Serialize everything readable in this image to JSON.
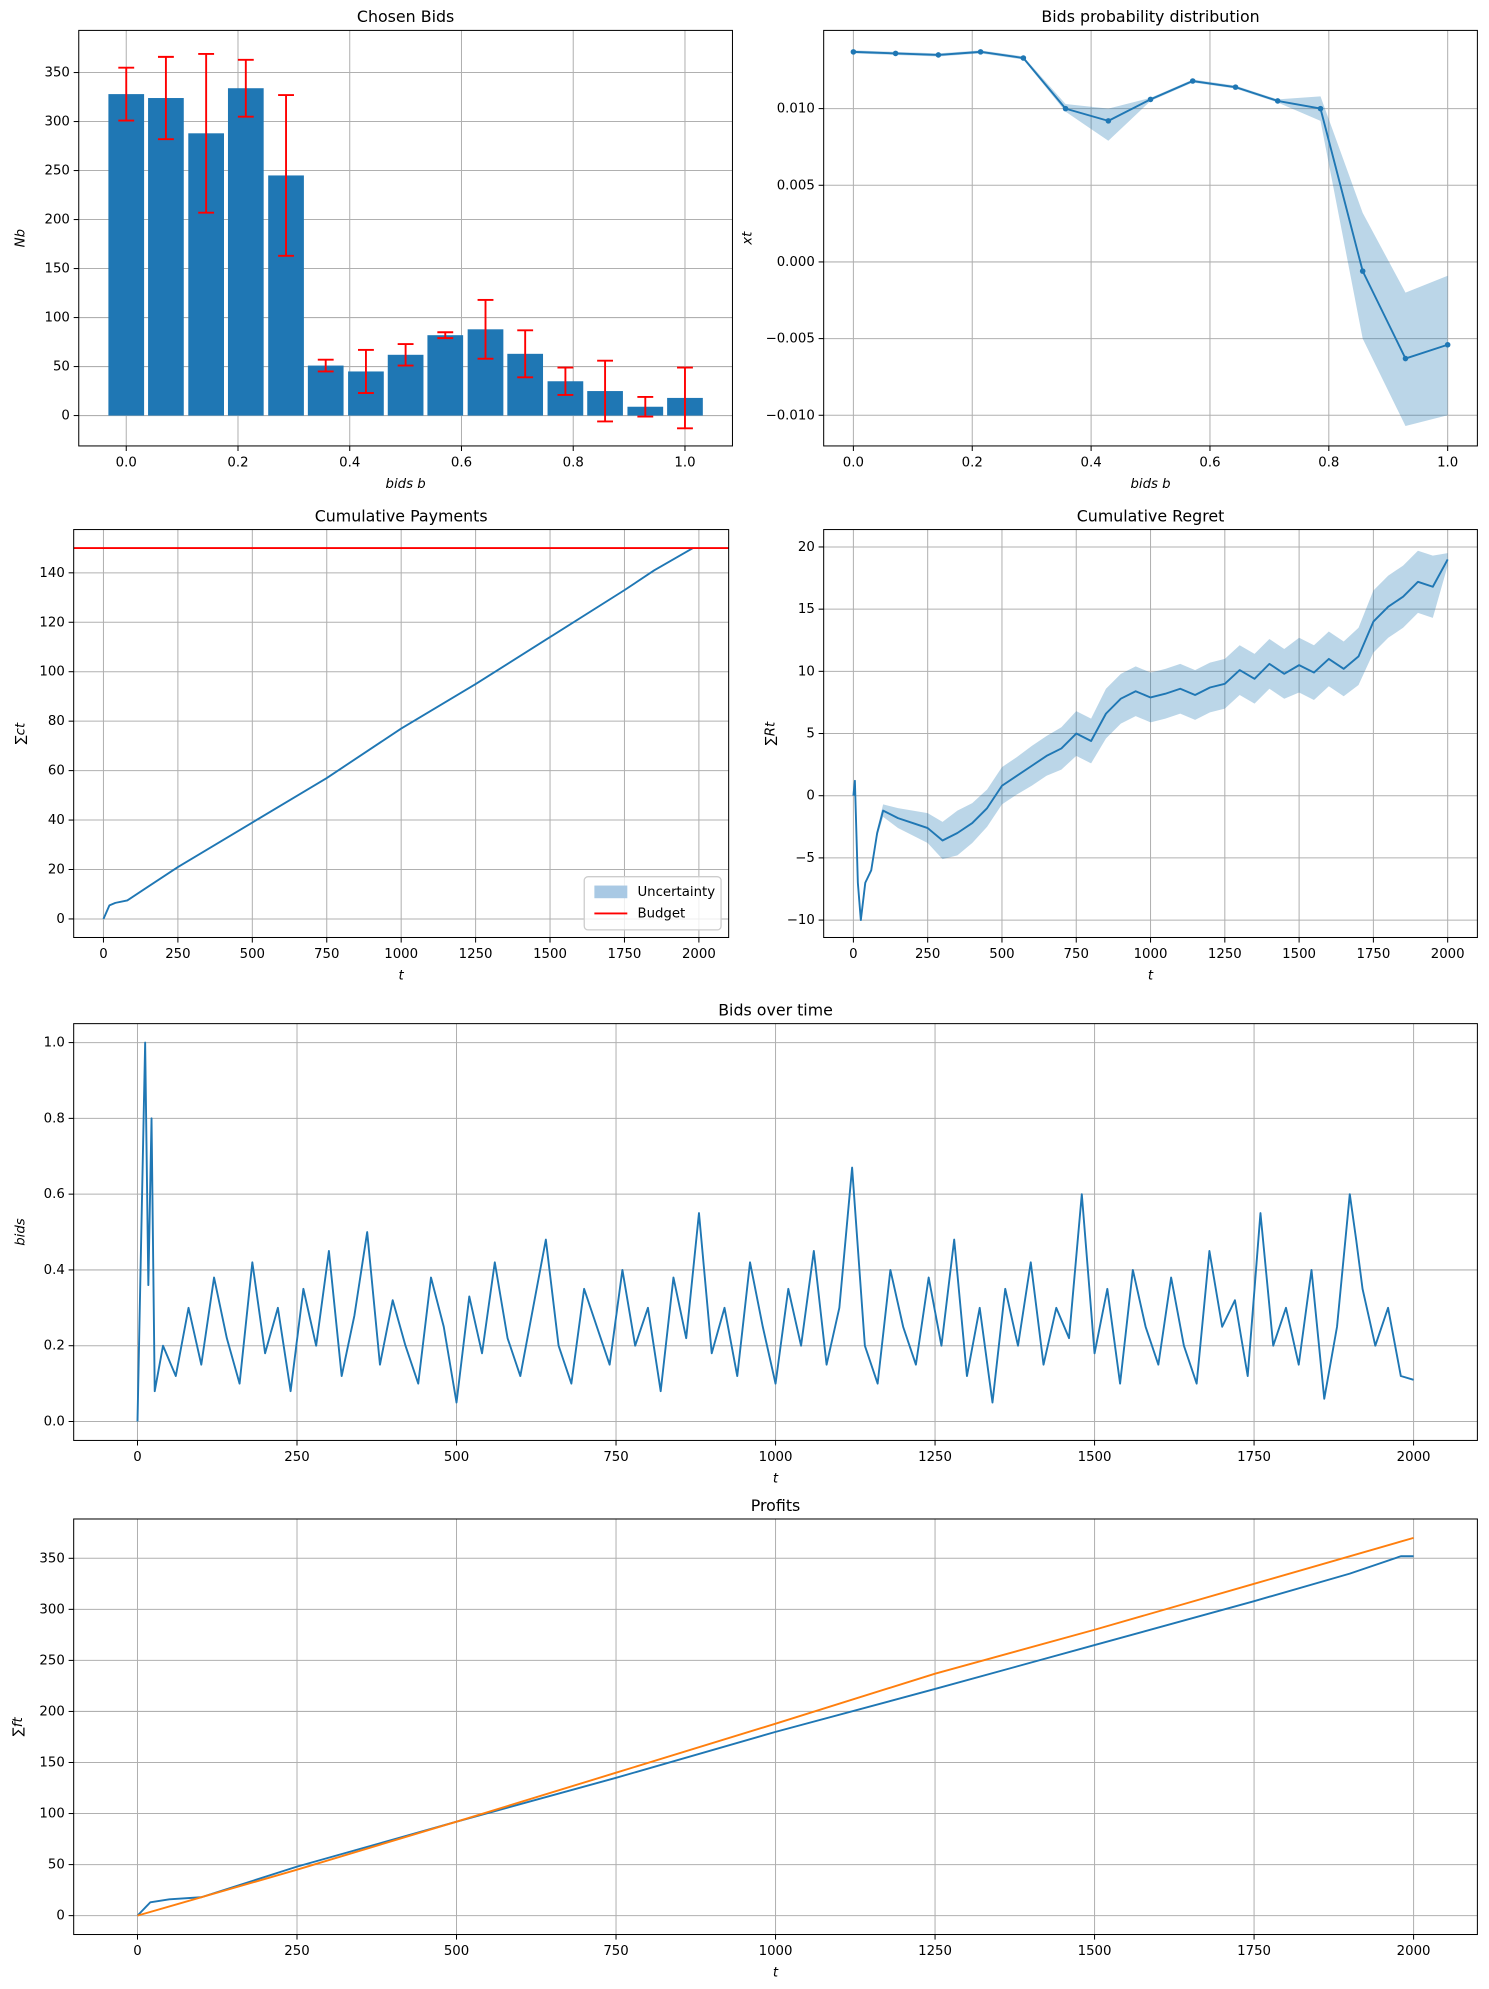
{
  "chart_data": [
    {
      "type": "bar",
      "title": "Chosen Bids",
      "xlabel": "bids b",
      "ylabel": "Nb",
      "x": [
        0,
        0.071,
        0.143,
        0.214,
        0.286,
        0.357,
        0.429,
        0.5,
        0.571,
        0.643,
        0.714,
        0.786,
        0.857,
        0.929,
        1.0
      ],
      "values": [
        328,
        324,
        288,
        334,
        245,
        51,
        45,
        62,
        82,
        88,
        63,
        35,
        25,
        9,
        18
      ],
      "errors": [
        27,
        42,
        81,
        29,
        82,
        6,
        22,
        11,
        3,
        30,
        24,
        14,
        31,
        10,
        31
      ],
      "color": "#1f77b4",
      "error_color": "#ff0000",
      "xlim": [
        -0.085,
        1.085
      ],
      "ylim": [
        -31,
        393
      ],
      "xticks": [
        {
          "value": 0,
          "label": "0.0"
        },
        0.2,
        0.4,
        0.6,
        0.8,
        {
          "value": 1,
          "label": "1.0"
        }
      ],
      "yticks": [
        0,
        50,
        100,
        150,
        200,
        250,
        300,
        350
      ],
      "grid": true
    },
    {
      "type": "line",
      "title": "Bids probability distribution",
      "xlabel": "bids b",
      "ylabel": "xt",
      "markers": true,
      "series": [
        {
          "color": "#1f77b4",
          "x": [
            0,
            0.071,
            0.143,
            0.214,
            0.286,
            0.357,
            0.429,
            0.5,
            0.571,
            0.643,
            0.714,
            0.786,
            0.857,
            0.929,
            1.0
          ],
          "values": [
            0.0137,
            0.0136,
            0.0135,
            0.0137,
            0.0133,
            0.01,
            0.0092,
            0.0106,
            0.0118,
            0.0114,
            0.0105,
            0.01,
            -0.0006,
            -0.0063,
            -0.0054
          ],
          "band_low": [
            0.0136,
            0.0135,
            0.0134,
            0.0136,
            0.0132,
            0.0098,
            0.0079,
            0.0105,
            0.0117,
            0.0113,
            0.0104,
            0.0092,
            -0.005,
            -0.0107,
            -0.01
          ],
          "band_high": [
            0.0138,
            0.0137,
            0.0136,
            0.0138,
            0.0134,
            0.0103,
            0.01,
            0.0107,
            0.0119,
            0.0115,
            0.0106,
            0.0108,
            0.0032,
            -0.002,
            -0.0009
          ]
        }
      ],
      "xlim": [
        -0.05,
        1.05
      ],
      "ylim": [
        -0.012,
        0.0151
      ],
      "xticks": [
        {
          "value": 0,
          "label": "0.0"
        },
        0.2,
        0.4,
        0.6,
        0.8,
        {
          "value": 1,
          "label": "1.0"
        }
      ],
      "yticks": [
        {
          "value": -0.01,
          "label": "−0.010"
        },
        {
          "value": -0.005,
          "label": "−0.005"
        },
        {
          "value": 0,
          "label": "0.000"
        },
        {
          "value": 0.005,
          "label": "0.005"
        },
        {
          "value": 0.01,
          "label": "0.010"
        }
      ],
      "grid": true
    },
    {
      "type": "line",
      "title": "Cumulative Payments",
      "xlabel": "t",
      "ylabel": "∑ct",
      "series": [
        {
          "color": "#1f77b4",
          "x": [
            0,
            20,
            40,
            80,
            250,
            500,
            750,
            1000,
            1250,
            1500,
            1750,
            1850,
            1980
          ],
          "values": [
            0,
            5.5,
            6.5,
            7.5,
            21,
            39,
            57,
            77,
            95,
            114,
            133,
            141,
            150
          ]
        }
      ],
      "hline": 150,
      "hline_color": "#ff0000",
      "legend": {
        "loc": "lower right",
        "entries": [
          {
            "label": "Uncertainty",
            "kind": "patch",
            "color": "#a9c9e4"
          },
          {
            "label": "Budget",
            "kind": "line",
            "color": "#ff0000"
          }
        ]
      },
      "xlim": [
        -100,
        2100
      ],
      "ylim": [
        -7.5,
        157.5
      ],
      "xticks": [
        0,
        250,
        500,
        750,
        1000,
        1250,
        1500,
        1750,
        2000
      ],
      "yticks": [
        0,
        20,
        40,
        60,
        80,
        100,
        120,
        140
      ],
      "grid": true
    },
    {
      "type": "line",
      "title": "Cumulative Regret",
      "xlabel": "t",
      "ylabel": "∑Rt",
      "series": [
        {
          "color": "#1f77b4",
          "x": [
            0,
            5,
            15,
            25,
            40,
            60,
            80,
            100,
            150,
            200,
            250,
            300,
            350,
            400,
            450,
            500,
            550,
            600,
            650,
            700,
            750,
            800,
            850,
            900,
            950,
            1000,
            1050,
            1100,
            1150,
            1200,
            1250,
            1300,
            1350,
            1400,
            1450,
            1500,
            1550,
            1600,
            1650,
            1700,
            1750,
            1800,
            1850,
            1900,
            1950,
            2000
          ],
          "values": [
            0,
            1.2,
            -7,
            -10,
            -7,
            -6,
            -3,
            -1.2,
            -1.8,
            -2.2,
            -2.6,
            -3.6,
            -3,
            -2.2,
            -1,
            0.8,
            1.6,
            2.4,
            3.2,
            3.8,
            5,
            4.4,
            6.6,
            7.8,
            8.4,
            7.9,
            8.2,
            8.6,
            8.1,
            8.7,
            9,
            10.1,
            9.4,
            10.6,
            9.8,
            10.5,
            9.9,
            11,
            10.2,
            11.2,
            14,
            15.2,
            16,
            17.2,
            16.8,
            19
          ],
          "band_low": [
            0,
            1.2,
            -7,
            -10,
            -7,
            -6,
            -3.3,
            -1.7,
            -2.6,
            -3.2,
            -3.8,
            -5.1,
            -4.8,
            -3.8,
            -2.5,
            -0.7,
            0.1,
            0.8,
            1.6,
            2.1,
            3.2,
            2.6,
            4.6,
            5.8,
            6.4,
            5.9,
            6.2,
            6.6,
            6.1,
            6.7,
            7,
            8.1,
            7.4,
            8.6,
            7.8,
            8.3,
            7.7,
            8.8,
            8,
            8.9,
            11.5,
            12.7,
            13.5,
            14.7,
            14.3,
            18.5
          ],
          "band_high": [
            0,
            1.2,
            -7,
            -10,
            -7,
            -6,
            -2.7,
            -0.7,
            -1,
            -1.2,
            -1.4,
            -2.1,
            -1.2,
            -0.6,
            0.5,
            2.3,
            3.1,
            4,
            4.8,
            5.5,
            6.8,
            6.2,
            8.6,
            9.8,
            10.4,
            9.9,
            10.2,
            10.6,
            10.1,
            10.7,
            11,
            12.1,
            11.4,
            12.6,
            11.8,
            12.7,
            12.1,
            13.2,
            12.4,
            13.5,
            16.5,
            17.7,
            18.5,
            19.7,
            19.3,
            19.5
          ]
        }
      ],
      "xlim": [
        -100,
        2100
      ],
      "ylim": [
        -11.4,
        21.4
      ],
      "xticks": [
        0,
        250,
        500,
        750,
        1000,
        1250,
        1500,
        1750,
        2000
      ],
      "yticks": [
        {
          "value": -10,
          "label": "−10"
        },
        {
          "value": -5,
          "label": "−5"
        },
        0,
        5,
        10,
        15,
        20
      ],
      "grid": true
    },
    {
      "type": "line",
      "title": "Bids over time",
      "xlabel": "t",
      "ylabel": "bids",
      "series": [
        {
          "color": "#1f77b4",
          "x": [
            0,
            12,
            17,
            22,
            27,
            40,
            60,
            80,
            100,
            120,
            140,
            160,
            180,
            200,
            220,
            240,
            260,
            280,
            300,
            320,
            340,
            360,
            380,
            400,
            420,
            440,
            460,
            480,
            500,
            520,
            540,
            560,
            580,
            600,
            620,
            640,
            660,
            680,
            700,
            720,
            740,
            760,
            780,
            800,
            820,
            840,
            860,
            880,
            900,
            920,
            940,
            960,
            980,
            1000,
            1020,
            1040,
            1060,
            1080,
            1100,
            1120,
            1140,
            1160,
            1180,
            1200,
            1220,
            1240,
            1260,
            1280,
            1300,
            1320,
            1340,
            1360,
            1380,
            1400,
            1420,
            1440,
            1460,
            1480,
            1500,
            1520,
            1540,
            1560,
            1580,
            1600,
            1620,
            1640,
            1660,
            1680,
            1700,
            1720,
            1740,
            1760,
            1780,
            1800,
            1820,
            1840,
            1860,
            1880,
            1900,
            1910,
            1920,
            1940,
            1960,
            1980,
            2000
          ],
          "values": [
            0,
            1.0,
            0.36,
            0.8,
            0.08,
            0.2,
            0.12,
            0.3,
            0.15,
            0.38,
            0.22,
            0.1,
            0.42,
            0.18,
            0.3,
            0.08,
            0.35,
            0.2,
            0.45,
            0.12,
            0.28,
            0.5,
            0.15,
            0.32,
            0.2,
            0.1,
            0.38,
            0.25,
            0.05,
            0.33,
            0.18,
            0.42,
            0.22,
            0.12,
            0.3,
            0.48,
            0.2,
            0.1,
            0.35,
            0.25,
            0.15,
            0.4,
            0.2,
            0.3,
            0.08,
            0.38,
            0.22,
            0.55,
            0.18,
            0.3,
            0.12,
            0.42,
            0.25,
            0.1,
            0.35,
            0.2,
            0.45,
            0.15,
            0.3,
            0.67,
            0.2,
            0.1,
            0.4,
            0.25,
            0.15,
            0.38,
            0.2,
            0.48,
            0.12,
            0.3,
            0.05,
            0.35,
            0.2,
            0.42,
            0.15,
            0.3,
            0.22,
            0.6,
            0.18,
            0.35,
            0.1,
            0.4,
            0.25,
            0.15,
            0.38,
            0.2,
            0.1,
            0.45,
            0.25,
            0.32,
            0.12,
            0.55,
            0.2,
            0.3,
            0.15,
            0.4,
            0.06,
            0.25,
            0.6,
            0.48,
            0.35,
            0.2,
            0.3,
            0.12,
            0.11
          ]
        }
      ],
      "xlim": [
        -100,
        2100
      ],
      "ylim": [
        -0.05,
        1.05
      ],
      "xticks": [
        0,
        250,
        500,
        750,
        1000,
        1250,
        1500,
        1750,
        2000
      ],
      "yticks": [
        {
          "value": 0,
          "label": "0.0"
        },
        0.2,
        0.4,
        0.6,
        0.8,
        {
          "value": 1,
          "label": "1.0"
        }
      ],
      "grid": true
    },
    {
      "type": "line",
      "title": "Profits",
      "xlabel": "t",
      "ylabel": "∑ft",
      "series": [
        {
          "color": "#1f77b4",
          "x": [
            0,
            20,
            50,
            100,
            250,
            500,
            750,
            1000,
            1250,
            1500,
            1750,
            1900,
            1980,
            2000
          ],
          "values": [
            0,
            13,
            16,
            18,
            48,
            92,
            135,
            180,
            222,
            265,
            308,
            335,
            352,
            352
          ]
        },
        {
          "color": "#ff7f0e",
          "x": [
            0,
            250,
            500,
            750,
            1000,
            1250,
            1500,
            1750,
            2000
          ],
          "values": [
            0,
            45,
            92,
            140,
            188,
            237,
            280,
            325,
            370
          ]
        }
      ],
      "xlim": [
        -100,
        2100
      ],
      "ylim": [
        -18.5,
        388.5
      ],
      "xticks": [
        0,
        250,
        500,
        750,
        1000,
        1250,
        1500,
        1750,
        2000
      ],
      "yticks": [
        0,
        50,
        100,
        150,
        200,
        250,
        300,
        350
      ],
      "grid": true
    }
  ]
}
